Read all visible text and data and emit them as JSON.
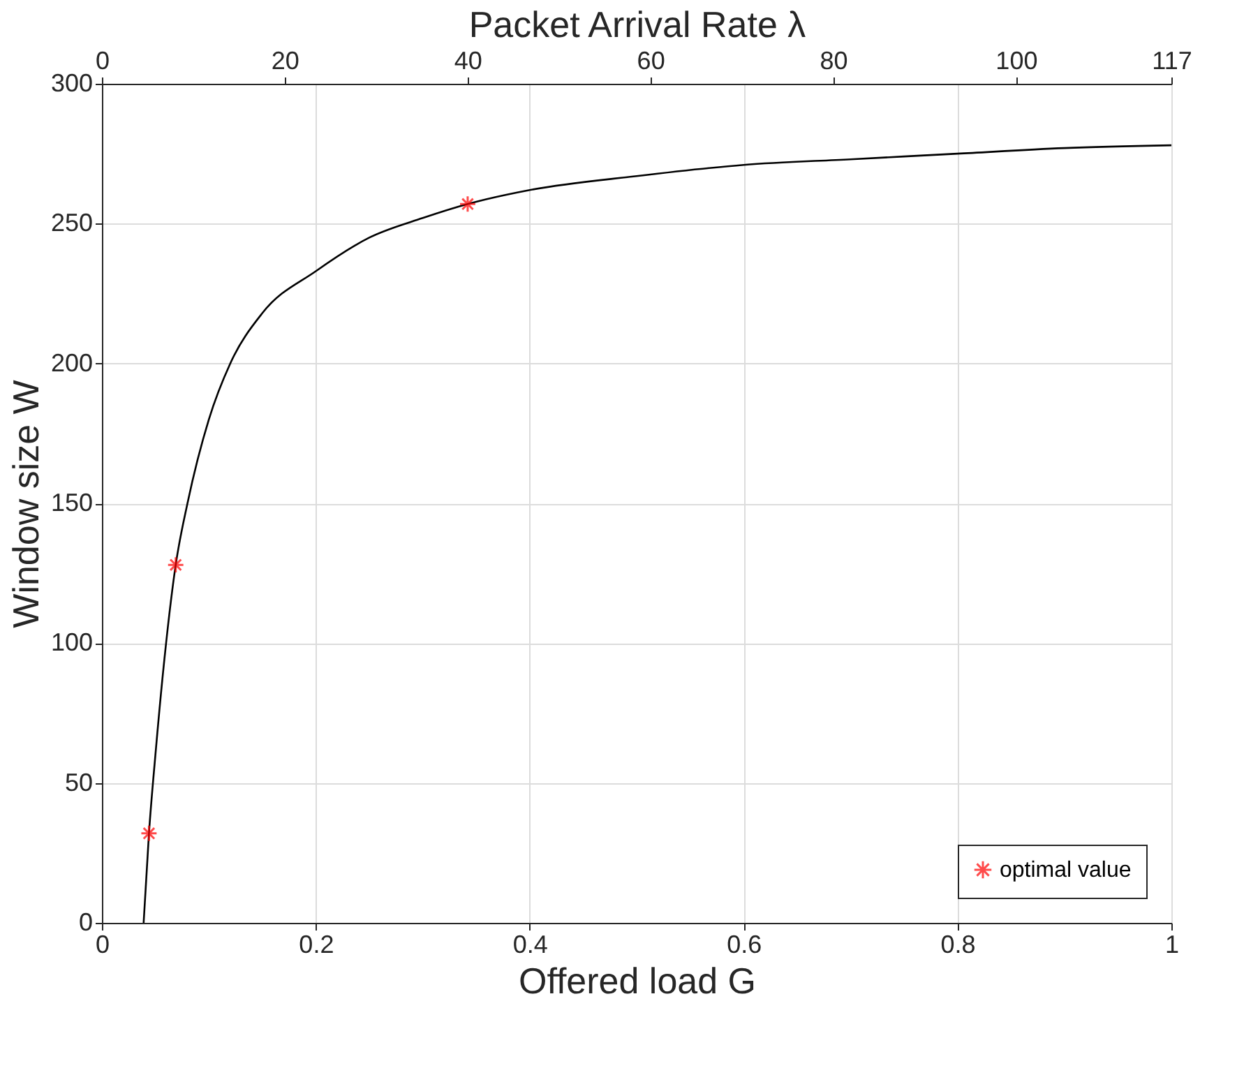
{
  "chart_data": {
    "type": "line",
    "xlabel": "Offered load G",
    "ylabel": "Window size W",
    "x2label": "Packet Arrival Rate λ",
    "xlim": [
      0,
      1
    ],
    "xticks": [
      0,
      0.2,
      0.4,
      0.6,
      0.8,
      1
    ],
    "ylim": [
      0,
      300
    ],
    "yticks": [
      0,
      50,
      100,
      150,
      200,
      250,
      300
    ],
    "x2lim": [
      0,
      117
    ],
    "x2ticks": [
      0,
      20,
      40,
      60,
      80,
      100,
      117
    ],
    "grid": true,
    "legend": "bottom right",
    "series": [
      {
        "color": "#000000",
        "x": [
          0.039,
          0.044,
          0.05,
          0.06,
          0.069,
          0.08,
          0.1,
          0.12,
          0.15,
          0.2,
          0.25,
          0.3,
          0.342,
          0.4,
          0.5,
          0.6,
          0.7,
          0.8,
          0.9,
          1.0
        ],
        "values": [
          0,
          32,
          60,
          100,
          128,
          150,
          180,
          200,
          218,
          233,
          245,
          252,
          257,
          262,
          267,
          271,
          273,
          275,
          277,
          278
        ]
      },
      {
        "type": "scatter",
        "name": "optimal value",
        "color": "#ff0000",
        "marker": "cross",
        "x": [
          0.044,
          0.069,
          0.342
        ],
        "values": [
          32,
          128,
          257
        ]
      }
    ]
  }
}
